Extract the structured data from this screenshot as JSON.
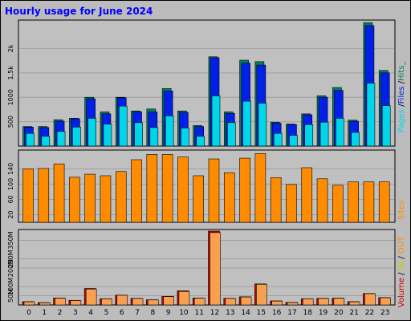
{
  "title": "Hourly usage for June 2024",
  "colors": {
    "background": "#bcbcbc",
    "plot_bg": "#c0c0c0",
    "grid": "#a0a0a0",
    "pages": "#00d5ea",
    "files": "#0020e8",
    "hits": "#008060",
    "sites": "#ff8c00",
    "volume": "#d00000",
    "volume_in": "#f8a050",
    "text": "#000000",
    "title": "#0000ff"
  },
  "chart_data": [
    {
      "type": "bar",
      "name": "hits-files-pages",
      "categories": [
        "0",
        "1",
        "2",
        "3",
        "4",
        "5",
        "6",
        "7",
        "8",
        "9",
        "10",
        "11",
        "12",
        "13",
        "14",
        "15",
        "16",
        "17",
        "18",
        "19",
        "20",
        "21",
        "22",
        "23"
      ],
      "y_ticks": [
        "500",
        "1000",
        "1,5k",
        "2k"
      ],
      "ylim": [
        0,
        2550
      ],
      "legend_label": "Pages / Files / Hits_",
      "legend_parts": [
        "Pages",
        " /",
        "Files",
        " /",
        "Hits_"
      ],
      "series": [
        {
          "name": "Hits",
          "values": [
            400,
            400,
            540,
            570,
            1000,
            700,
            1000,
            720,
            760,
            1180,
            720,
            420,
            1830,
            700,
            1760,
            1730,
            490,
            450,
            660,
            1030,
            1200,
            530,
            2530,
            1550
          ]
        },
        {
          "name": "Files",
          "values": [
            390,
            380,
            510,
            560,
            970,
            660,
            990,
            700,
            700,
            1130,
            690,
            400,
            1810,
            670,
            1700,
            1660,
            470,
            440,
            640,
            1000,
            1140,
            510,
            2470,
            1500
          ]
        },
        {
          "name": "Pages",
          "values": [
            260,
            200,
            300,
            390,
            570,
            450,
            820,
            480,
            380,
            620,
            370,
            200,
            1030,
            480,
            920,
            880,
            260,
            220,
            440,
            490,
            570,
            280,
            1290,
            830
          ]
        }
      ]
    },
    {
      "type": "bar",
      "name": "sites",
      "categories": [
        "0",
        "1",
        "2",
        "3",
        "4",
        "5",
        "6",
        "7",
        "8",
        "9",
        "10",
        "11",
        "12",
        "13",
        "14",
        "15",
        "16",
        "17",
        "18",
        "19",
        "20",
        "21",
        "22",
        "23"
      ],
      "y_ticks": [
        "20",
        "60",
        "100",
        "140"
      ],
      "ylim": [
        0,
        185
      ],
      "legend_label": "Sites",
      "series": [
        {
          "name": "Sites",
          "values": [
            140,
            141,
            153,
            118,
            126,
            122,
            133,
            164,
            178,
            178,
            171,
            122,
            166,
            130,
            168,
            180,
            117,
            99,
            143,
            114,
            97,
            106,
            106,
            106
          ]
        }
      ]
    },
    {
      "type": "bar",
      "name": "volume",
      "categories": [
        "0",
        "1",
        "2",
        "3",
        "4",
        "5",
        "6",
        "7",
        "8",
        "9",
        "10",
        "11",
        "12",
        "13",
        "14",
        "15",
        "16",
        "17",
        "18",
        "19",
        "20",
        "21",
        "22",
        "23"
      ],
      "y_ticks": [
        "50M",
        "100M",
        "200M",
        "250M",
        "350M"
      ],
      "y_tick_values": [
        50,
        100,
        200,
        250,
        350
      ],
      "ylim": [
        0,
        400
      ],
      "legend_label": "Volume / IN / OUT",
      "legend_parts": [
        "Volume",
        " / ",
        "IN",
        " / ",
        "OUT"
      ],
      "series": [
        {
          "name": "Volume",
          "values": [
            18,
            13,
            38,
            25,
            89,
            34,
            53,
            36,
            28,
            46,
            77,
            38,
            400,
            36,
            44,
            114,
            22,
            14,
            34,
            36,
            37,
            18,
            62,
            40
          ]
        },
        {
          "name": "IN",
          "values": [
            17,
            12,
            37,
            24,
            86,
            33,
            52,
            35,
            27,
            45,
            73,
            37,
            392,
            35,
            43,
            112,
            21,
            13,
            33,
            35,
            36,
            17,
            61,
            39
          ]
        }
      ]
    }
  ]
}
